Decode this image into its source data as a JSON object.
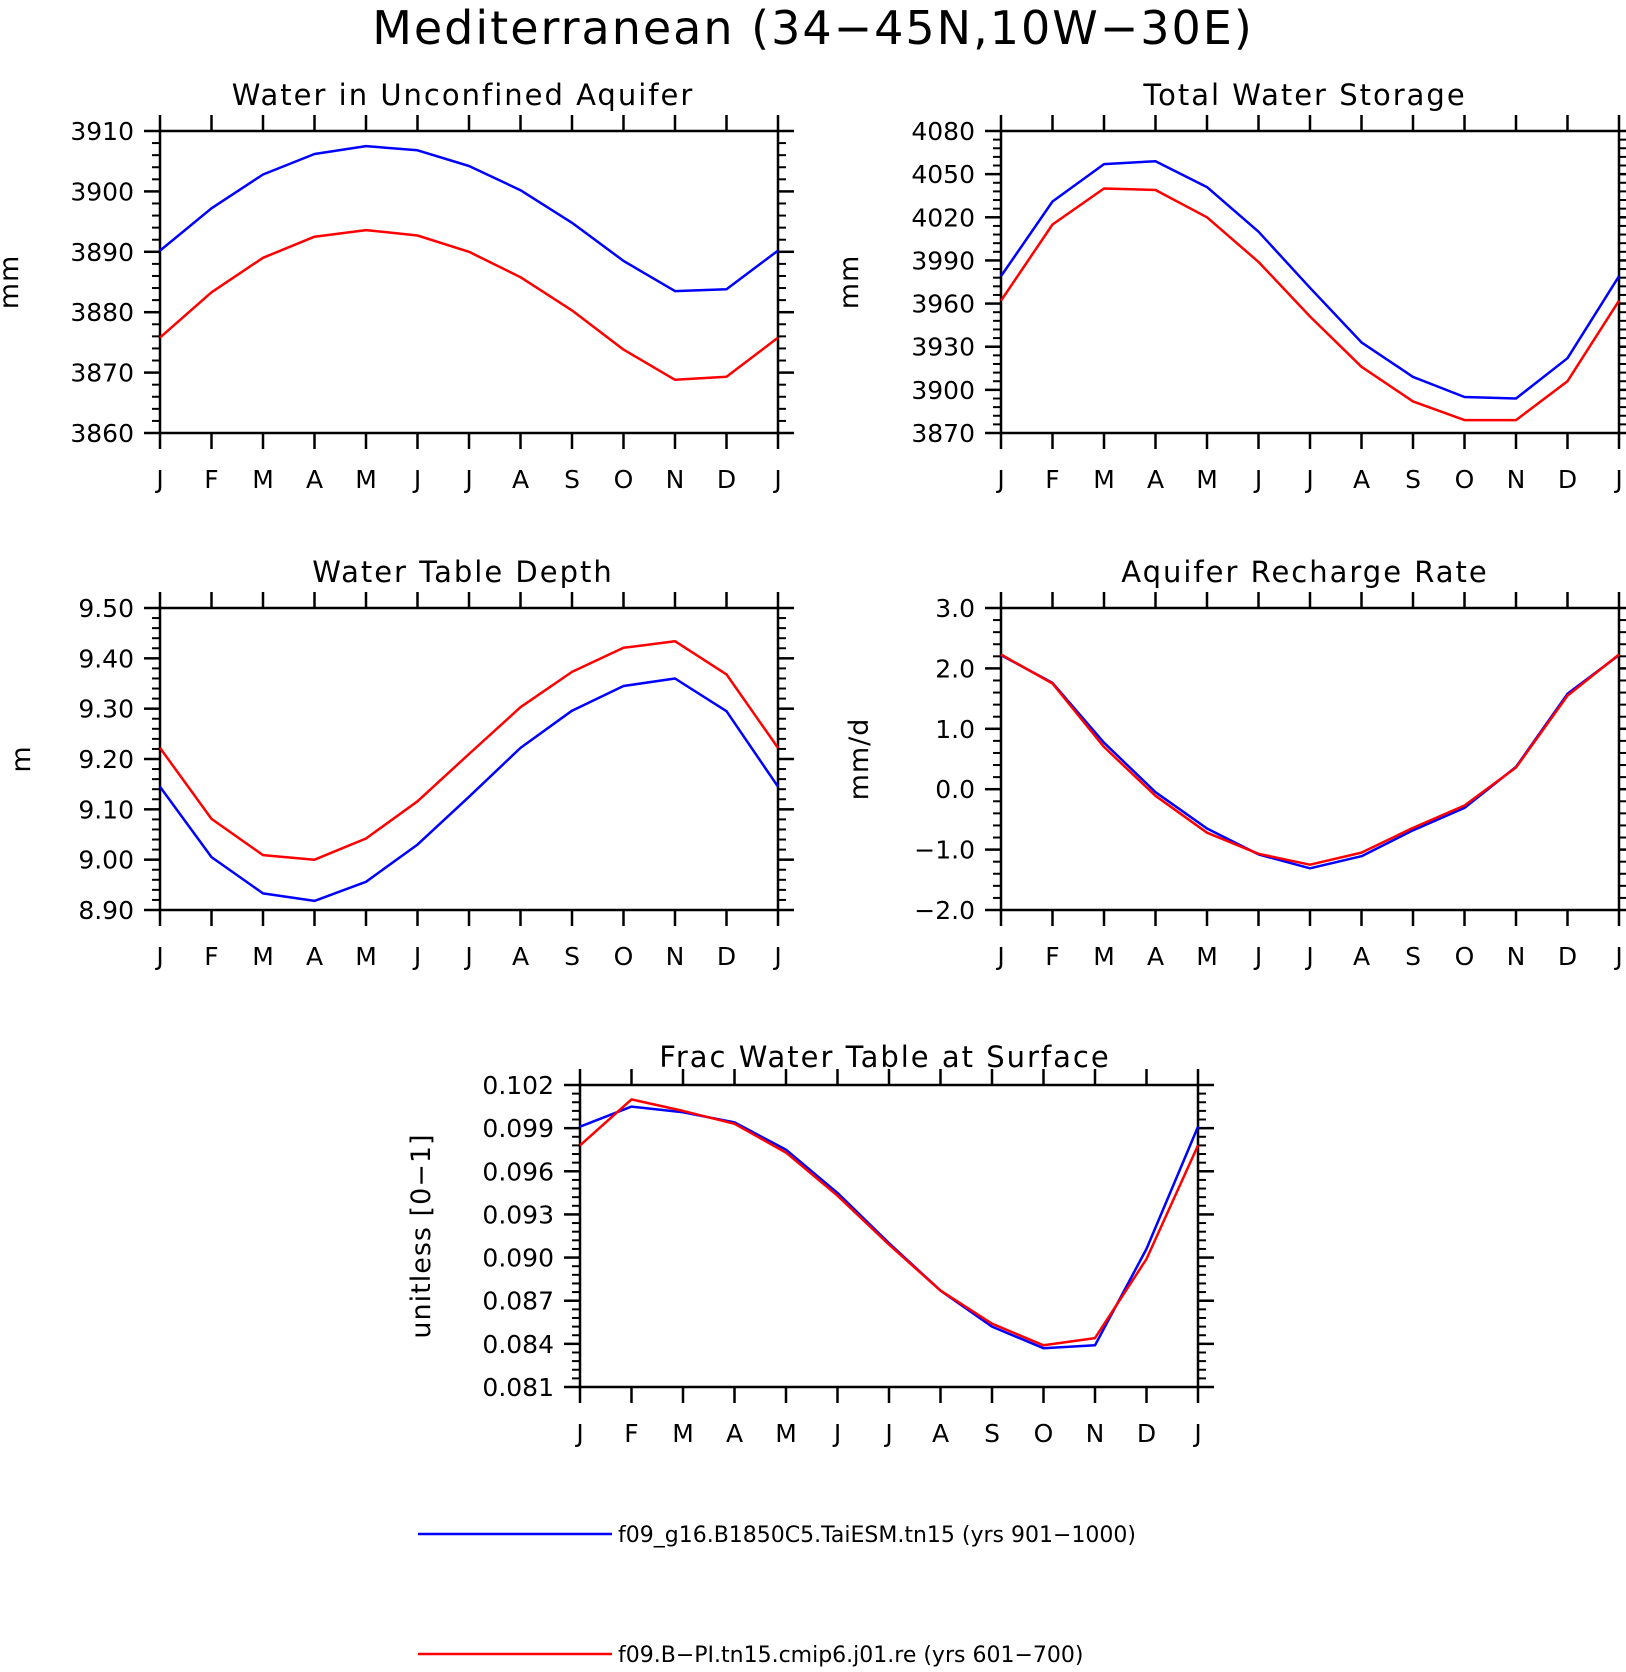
{
  "figure": {
    "title": "Mediterranean (34−45N,10W−30E)"
  },
  "legend": [
    {
      "label": "f09_g16.B1850C5.TaiESM.tn15 (yrs 901−1000)",
      "color": "#0000ff"
    },
    {
      "label": "f09.B−PI.tn15.cmip6.j01.re (yrs 601−700)",
      "color": "#ff0000"
    }
  ],
  "chart_data": [
    {
      "type": "line",
      "title": "Water in Unconfined Aquifer",
      "ylabel": "mm",
      "x": [
        "J",
        "F",
        "M",
        "A",
        "M",
        "J",
        "J",
        "A",
        "S",
        "O",
        "N",
        "D",
        "J"
      ],
      "ylim": [
        3860,
        3910
      ],
      "yticks": [
        "3860",
        "3870",
        "3880",
        "3890",
        "3900",
        "3910"
      ],
      "series": [
        {
          "color": "#0000ff",
          "values": [
            3890.2,
            3897.2,
            3902.8,
            3906.2,
            3907.5,
            3906.8,
            3904.2,
            3900.2,
            3894.8,
            3888.5,
            3883.5,
            3883.8,
            3890.2
          ]
        },
        {
          "color": "#ff0000",
          "values": [
            3875.8,
            3883.3,
            3889.0,
            3892.5,
            3893.6,
            3892.7,
            3890.0,
            3885.8,
            3880.3,
            3873.8,
            3868.8,
            3869.3,
            3875.8
          ]
        }
      ]
    },
    {
      "type": "line",
      "title": "Total Water Storage",
      "ylabel": "mm",
      "x": [
        "J",
        "F",
        "M",
        "A",
        "M",
        "J",
        "J",
        "A",
        "S",
        "O",
        "N",
        "D",
        "J"
      ],
      "ylim": [
        3870,
        4080
      ],
      "yticks": [
        "3870",
        "3900",
        "3930",
        "3960",
        "3990",
        "4020",
        "4050",
        "4080"
      ],
      "series": [
        {
          "color": "#0000ff",
          "values": [
            3979,
            4031,
            4057,
            4059,
            4041,
            4010,
            3971,
            3933,
            3909,
            3895,
            3894,
            3922,
            3979
          ]
        },
        {
          "color": "#ff0000",
          "values": [
            3962,
            4015,
            4040,
            4039,
            4020,
            3989,
            3951,
            3916,
            3892,
            3879,
            3879,
            3906,
            3962
          ]
        }
      ]
    },
    {
      "type": "line",
      "title": "Water Table Depth",
      "ylabel": "m",
      "x": [
        "J",
        "F",
        "M",
        "A",
        "M",
        "J",
        "J",
        "A",
        "S",
        "O",
        "N",
        "D",
        "J"
      ],
      "ylim": [
        8.9,
        9.5
      ],
      "yticks": [
        "8.90",
        "9.00",
        "9.10",
        "9.20",
        "9.30",
        "9.40",
        "9.50"
      ],
      "series": [
        {
          "color": "#0000ff",
          "values": [
            9.145,
            9.005,
            8.933,
            8.918,
            8.956,
            9.03,
            9.125,
            9.222,
            9.296,
            9.345,
            9.36,
            9.295,
            9.145
          ]
        },
        {
          "color": "#ff0000",
          "values": [
            9.222,
            9.081,
            9.009,
            9.0,
            9.042,
            9.116,
            9.21,
            9.303,
            9.373,
            9.421,
            9.434,
            9.368,
            9.222
          ]
        }
      ]
    },
    {
      "type": "line",
      "title": "Aquifer Recharge Rate",
      "ylabel": "mm/d",
      "x": [
        "J",
        "F",
        "M",
        "A",
        "M",
        "J",
        "J",
        "A",
        "S",
        "O",
        "N",
        "D",
        "J"
      ],
      "ylim": [
        -2.0,
        3.0
      ],
      "yticks": [
        "−2.0",
        "−1.0",
        "0.0",
        "1.0",
        "2.0",
        "3.0"
      ],
      "series": [
        {
          "color": "#0000ff",
          "values": [
            2.22,
            1.76,
            0.77,
            -0.05,
            -0.65,
            -1.08,
            -1.31,
            -1.11,
            -0.68,
            -0.31,
            0.37,
            1.58,
            2.22
          ]
        },
        {
          "color": "#ff0000",
          "values": [
            2.23,
            1.75,
            0.7,
            -0.11,
            -0.72,
            -1.07,
            -1.25,
            -1.05,
            -0.64,
            -0.27,
            0.36,
            1.55,
            2.23
          ]
        }
      ]
    },
    {
      "type": "line",
      "title": "Frac Water Table at Surface",
      "ylabel": "unitless [0−1]",
      "x": [
        "J",
        "F",
        "M",
        "A",
        "M",
        "J",
        "J",
        "A",
        "S",
        "O",
        "N",
        "D",
        "J"
      ],
      "ylim": [
        0.081,
        0.102
      ],
      "yticks": [
        "0.081",
        "0.084",
        "0.087",
        "0.090",
        "0.093",
        "0.096",
        "0.099",
        "0.102"
      ],
      "series": [
        {
          "color": "#0000ff",
          "values": [
            0.0991,
            0.1005,
            0.1001,
            0.0994,
            0.0975,
            0.0945,
            0.091,
            0.0877,
            0.0852,
            0.0837,
            0.0839,
            0.0906,
            0.0991
          ]
        },
        {
          "color": "#ff0000",
          "values": [
            0.0978,
            0.101,
            0.1002,
            0.0993,
            0.0973,
            0.0943,
            0.0909,
            0.0877,
            0.0854,
            0.0839,
            0.0844,
            0.0899,
            0.0978
          ]
        }
      ]
    }
  ]
}
